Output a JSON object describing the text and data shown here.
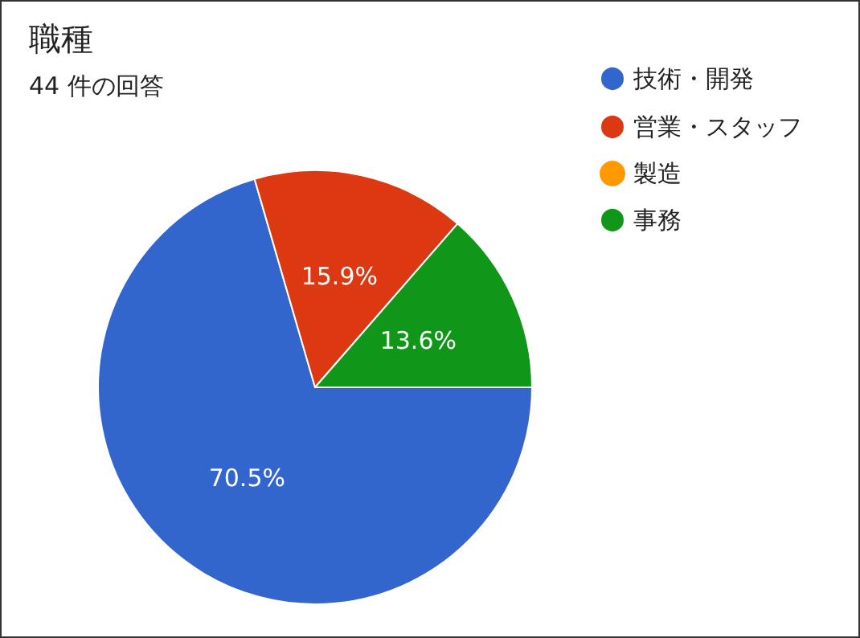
{
  "chart_data": {
    "type": "pie",
    "title": "職種",
    "subtitle": "44 件の回答",
    "categories": [
      "技術・開発",
      "営業・スタッフ",
      "製造",
      "事務"
    ],
    "values": [
      70.5,
      15.9,
      0,
      13.6
    ],
    "colors": [
      "#3366cc",
      "#dc3912",
      "#ff9900",
      "#109618"
    ],
    "value_labels": [
      "70.5%",
      "15.9%",
      null,
      "13.6%"
    ],
    "legend": "top right"
  }
}
